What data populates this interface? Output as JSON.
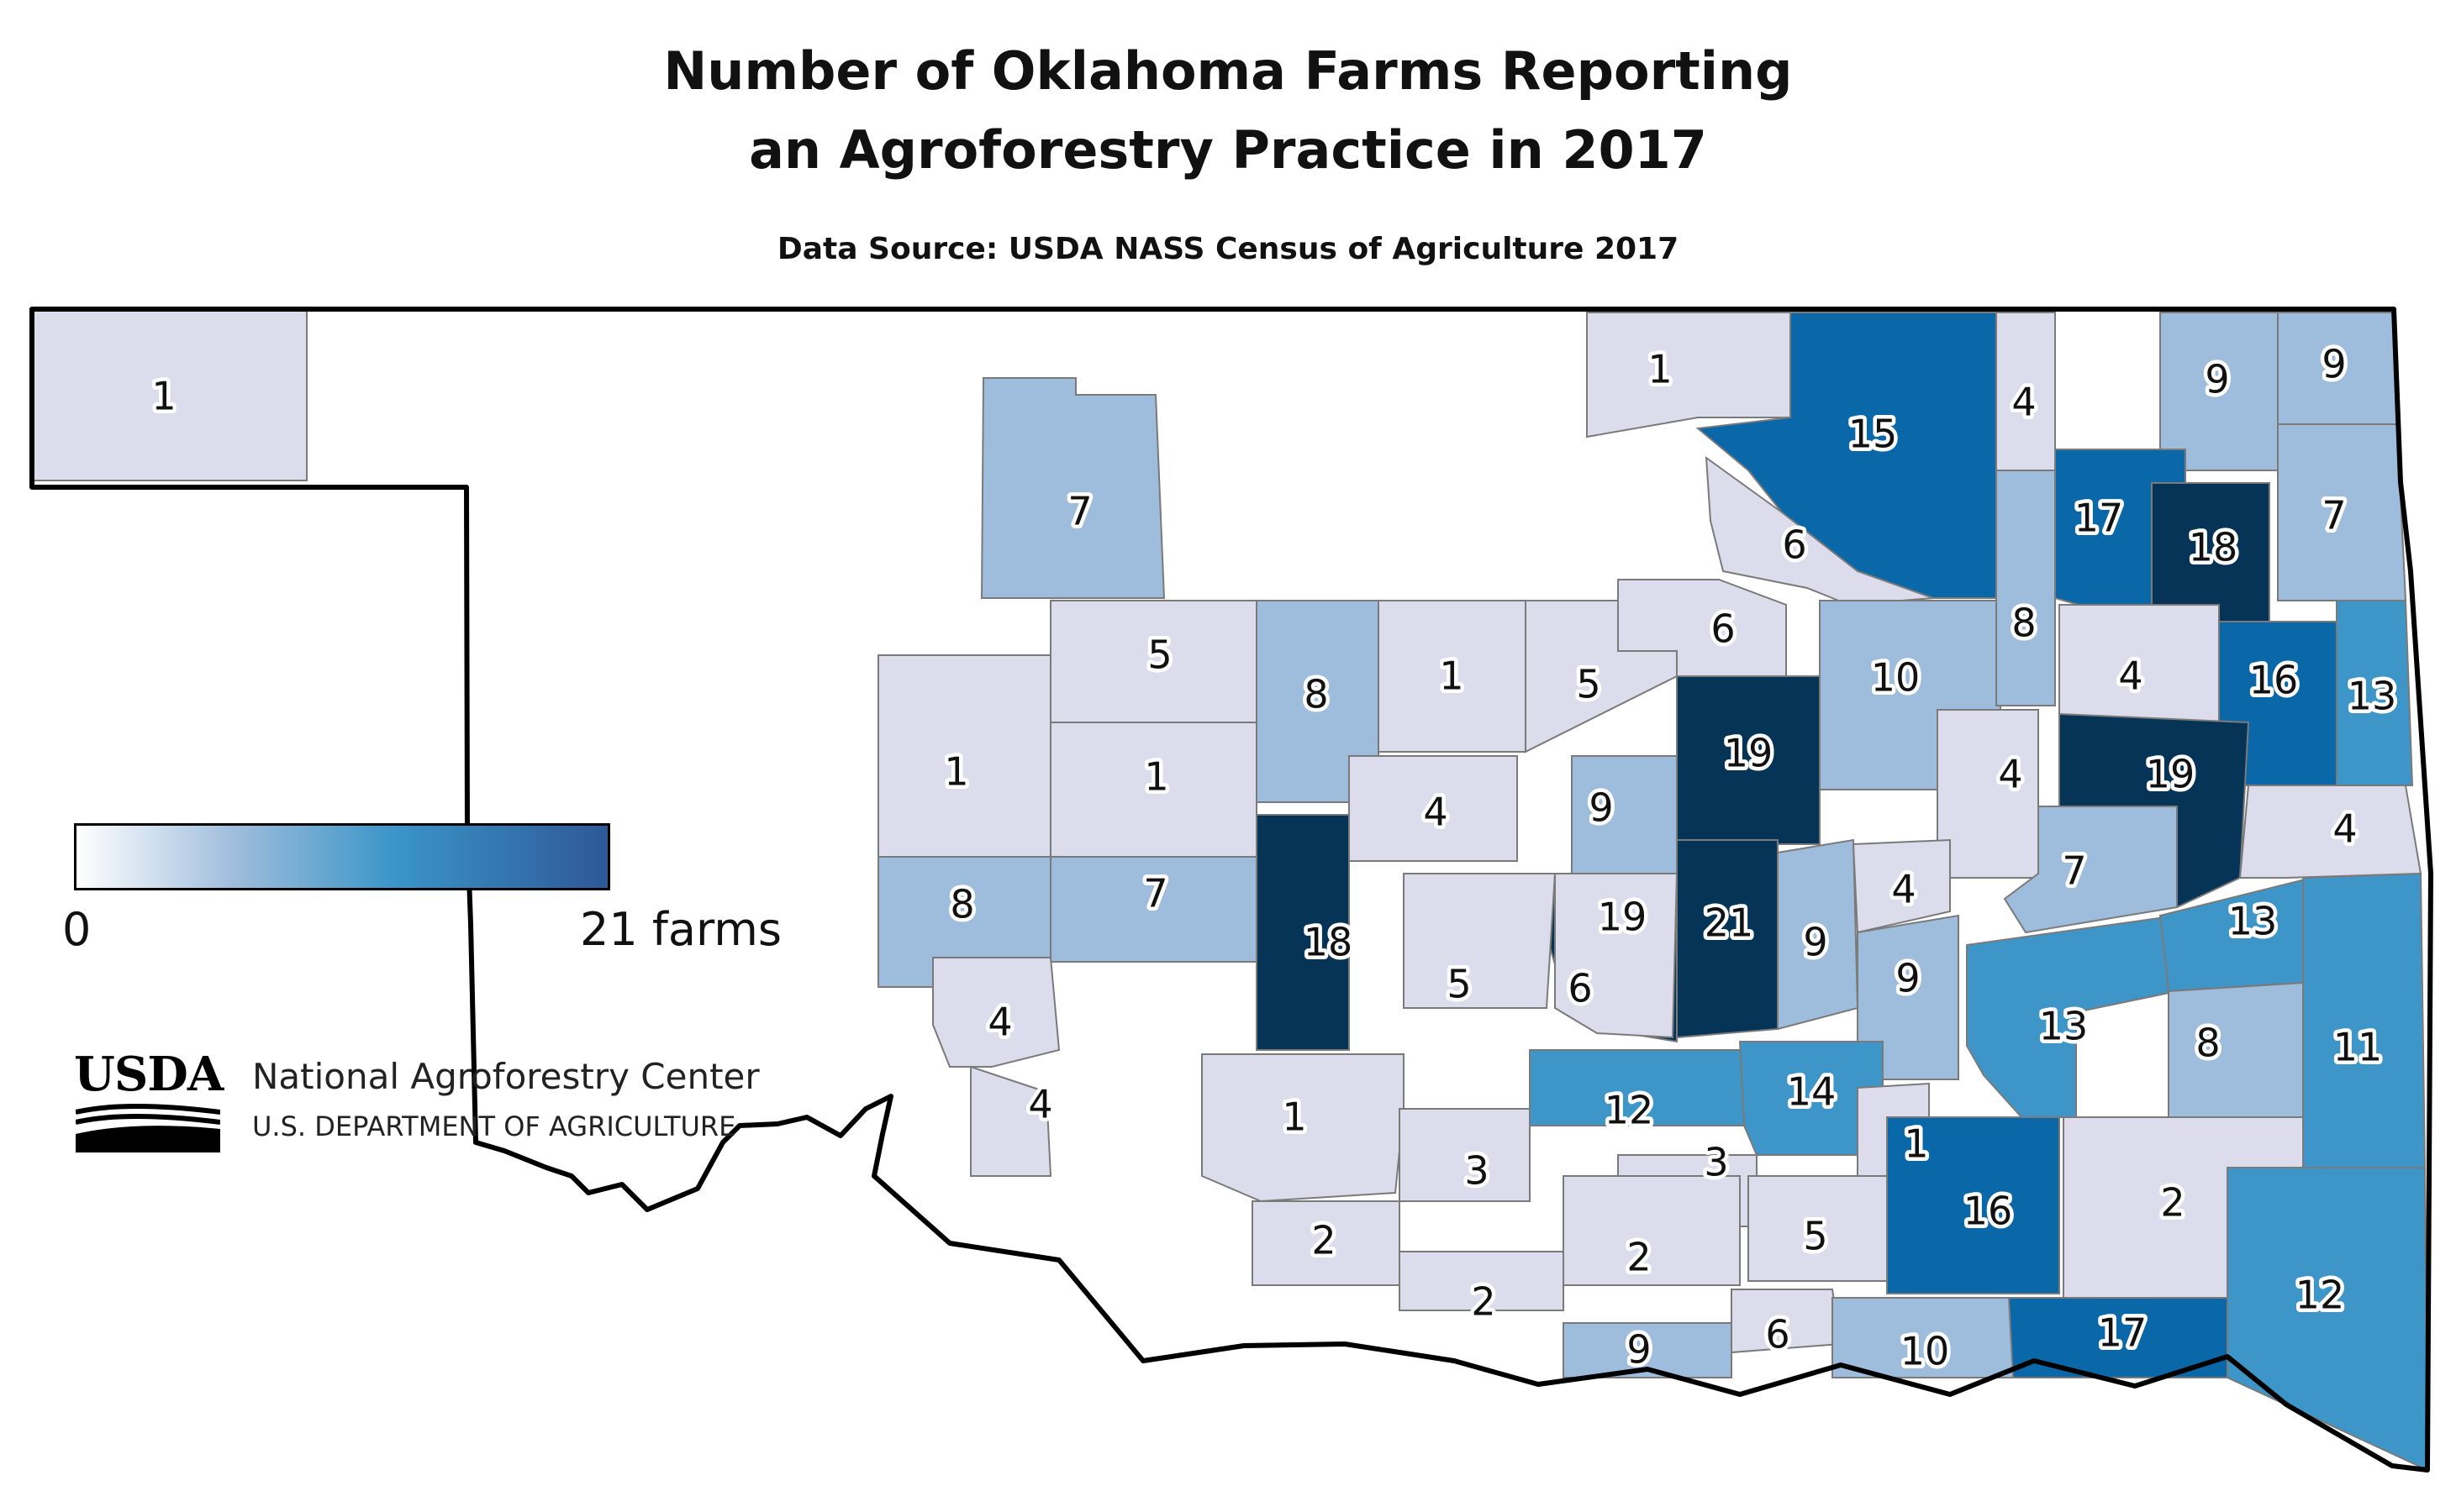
{
  "title_line1": "Number of Oklahoma Farms Reporting",
  "title_line2": "an Agroforestry Practice in 2017",
  "subtitle": "Data Source: USDA NASS Census of Agriculture 2017",
  "legend": {
    "min_label": "0",
    "max_label": "21 farms",
    "min": 0,
    "max": 21
  },
  "logo": {
    "wordmark": "USDA",
    "org_name": "National Agroforestry Center",
    "org_dept": "U.S. DEPARTMENT OF AGRICULTURE"
  },
  "colors": {
    "none": "#ffffff",
    "low": "#dcdcec",
    "light_blue": "#9ebcdc",
    "medium_blue": "#3e95c8",
    "blue": "#0a68a8",
    "dark_navy": "#053456",
    "border": "#000000"
  },
  "chart_data": {
    "type": "choropleth",
    "region": "Oklahoma counties",
    "unit": "farms",
    "labeled_values": [
      1,
      7,
      1,
      15,
      4,
      9,
      9,
      6,
      17,
      18,
      7,
      5,
      8,
      1,
      5,
      6,
      10,
      8,
      4,
      16,
      13,
      1,
      1,
      19,
      4,
      19,
      4,
      4,
      9,
      8,
      7,
      18,
      19,
      21,
      9,
      7,
      4,
      4,
      5,
      6,
      9,
      13,
      13,
      8,
      11,
      4,
      12,
      14,
      1,
      3,
      1,
      3,
      2,
      2,
      2,
      5,
      16,
      2,
      9,
      6,
      10,
      17,
      12
    ]
  }
}
